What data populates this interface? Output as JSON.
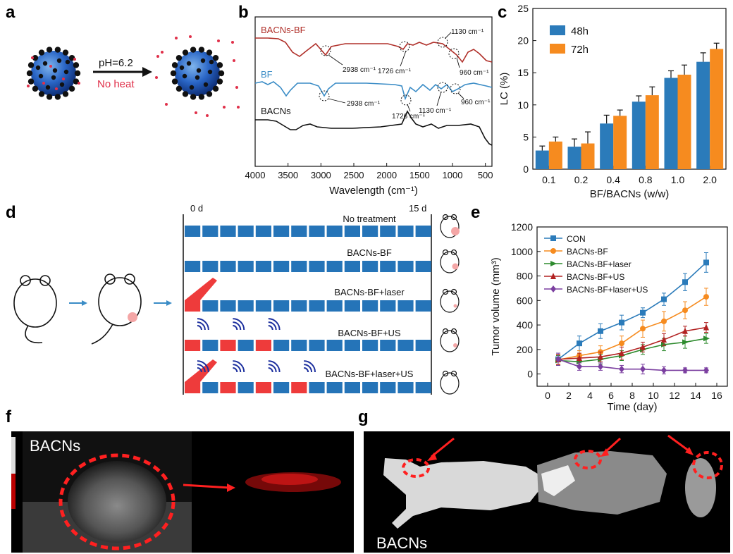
{
  "panels": {
    "a": "a",
    "b": "b",
    "c": "c",
    "d": "d",
    "e": "e",
    "f": "f",
    "g": "g"
  },
  "panel_a": {
    "condition": "pH=6.2",
    "no_heat": "No heat"
  },
  "panel_b": {
    "series": [
      "BACNs-BF",
      "BF",
      "BACNs"
    ],
    "annotations": {
      "bacnsbf_2938": "2938 cm⁻¹",
      "bacnsbf_1726": "1726 cm⁻¹",
      "bacnsbf_1130": "1130 cm⁻¹",
      "bacnsbf_960": "960 cm⁻¹",
      "bf_2938": "2938 cm⁻¹",
      "bf_1726": "1726 cm⁻¹",
      "bf_1130": "1130 cm⁻¹",
      "bf_960": "960 cm⁻¹"
    },
    "xlabel": "Wavelength (cm⁻¹)",
    "xticks": [
      "4000",
      "3500",
      "3000",
      "2500",
      "2000",
      "1500",
      "1000",
      "500"
    ],
    "colors": {
      "BACNs-BF": "#b0302a",
      "BF": "#3a8cc6",
      "BACNs": "#111111"
    }
  },
  "panel_d": {
    "start": "0 d",
    "end": "15 d",
    "groups": [
      "No treatment",
      "BACNs-BF",
      "BACNs-BF+laser",
      "BACNs-BF+US",
      "BACNs-BF+laser+US"
    ],
    "red_slots": [
      [],
      [],
      [
        0
      ],
      [
        0,
        2,
        4
      ],
      [
        0,
        2,
        4,
        6
      ]
    ],
    "us_slots": [
      [],
      [],
      [],
      [
        0,
        2,
        4
      ],
      [
        0,
        2,
        4,
        6
      ]
    ],
    "laser_slots": [
      [],
      [],
      [
        0
      ],
      [],
      [
        0
      ]
    ]
  },
  "panel_f": {
    "label": "BACNs"
  },
  "panel_g": {
    "label": "BACNs"
  },
  "chart_data": [
    {
      "id": "c",
      "type": "bar",
      "categories": [
        "0.1",
        "0.2",
        "0.4",
        "0.8",
        "1.0",
        "2.0"
      ],
      "series": [
        {
          "name": "48h",
          "values": [
            2.9,
            3.5,
            7.1,
            10.5,
            14.2,
            16.7
          ],
          "errors": [
            0.7,
            1.2,
            1.3,
            0.9,
            1.1,
            1.4
          ],
          "color": "#2b7bba"
        },
        {
          "name": "72h",
          "values": [
            4.3,
            4.0,
            8.3,
            11.5,
            14.7,
            18.7
          ],
          "errors": [
            0.7,
            1.8,
            0.9,
            1.3,
            1.5,
            0.9
          ],
          "color": "#f68b1f"
        }
      ],
      "xlabel": "BF/BACNs (w/w)",
      "ylabel": "LC (%)",
      "ylim": [
        0,
        25
      ],
      "yticks": [
        "0",
        "5",
        "10",
        "15",
        "20",
        "25"
      ],
      "legend": "top-left"
    },
    {
      "id": "e",
      "type": "line",
      "x": [
        1,
        3,
        5,
        7,
        9,
        11,
        13,
        15
      ],
      "series": [
        {
          "name": "CON",
          "marker": "square",
          "color": "#2b7bba",
          "values": [
            120,
            250,
            350,
            420,
            500,
            610,
            750,
            910
          ],
          "errors": [
            50,
            60,
            60,
            60,
            40,
            50,
            70,
            80
          ]
        },
        {
          "name": "BACNs-BF",
          "marker": "circle",
          "color": "#f68b1f",
          "values": [
            115,
            150,
            180,
            250,
            370,
            430,
            520,
            630
          ],
          "errors": [
            40,
            40,
            50,
            60,
            70,
            80,
            70,
            70
          ]
        },
        {
          "name": "BACNs-BF+laser",
          "marker": "triangle-right",
          "color": "#2e8b2e",
          "values": [
            110,
            100,
            120,
            150,
            200,
            240,
            260,
            290
          ],
          "errors": [
            40,
            30,
            40,
            40,
            40,
            50,
            50,
            40
          ]
        },
        {
          "name": "BACNs-BF+US",
          "marker": "triangle-up",
          "color": "#b22222",
          "values": [
            120,
            130,
            140,
            170,
            220,
            280,
            350,
            380
          ],
          "errors": [
            40,
            40,
            40,
            50,
            40,
            50,
            40,
            40
          ]
        },
        {
          "name": "BACNs-BF+laser+US",
          "marker": "diamond",
          "color": "#7b3fa0",
          "values": [
            120,
            60,
            60,
            40,
            40,
            30,
            30,
            30
          ],
          "errors": [
            50,
            30,
            30,
            30,
            40,
            30,
            20,
            20
          ]
        }
      ],
      "xlabel": "Time (day)",
      "ylabel": "Tumor volume (mm³)",
      "xlim": [
        -1,
        17
      ],
      "xticks": [
        "0",
        "2",
        "4",
        "6",
        "8",
        "10",
        "12",
        "14",
        "16"
      ],
      "ylim": [
        -100,
        1200
      ],
      "yticks": [
        "0",
        "200",
        "400",
        "600",
        "800",
        "1000",
        "1200"
      ],
      "legend": "top-left"
    }
  ]
}
